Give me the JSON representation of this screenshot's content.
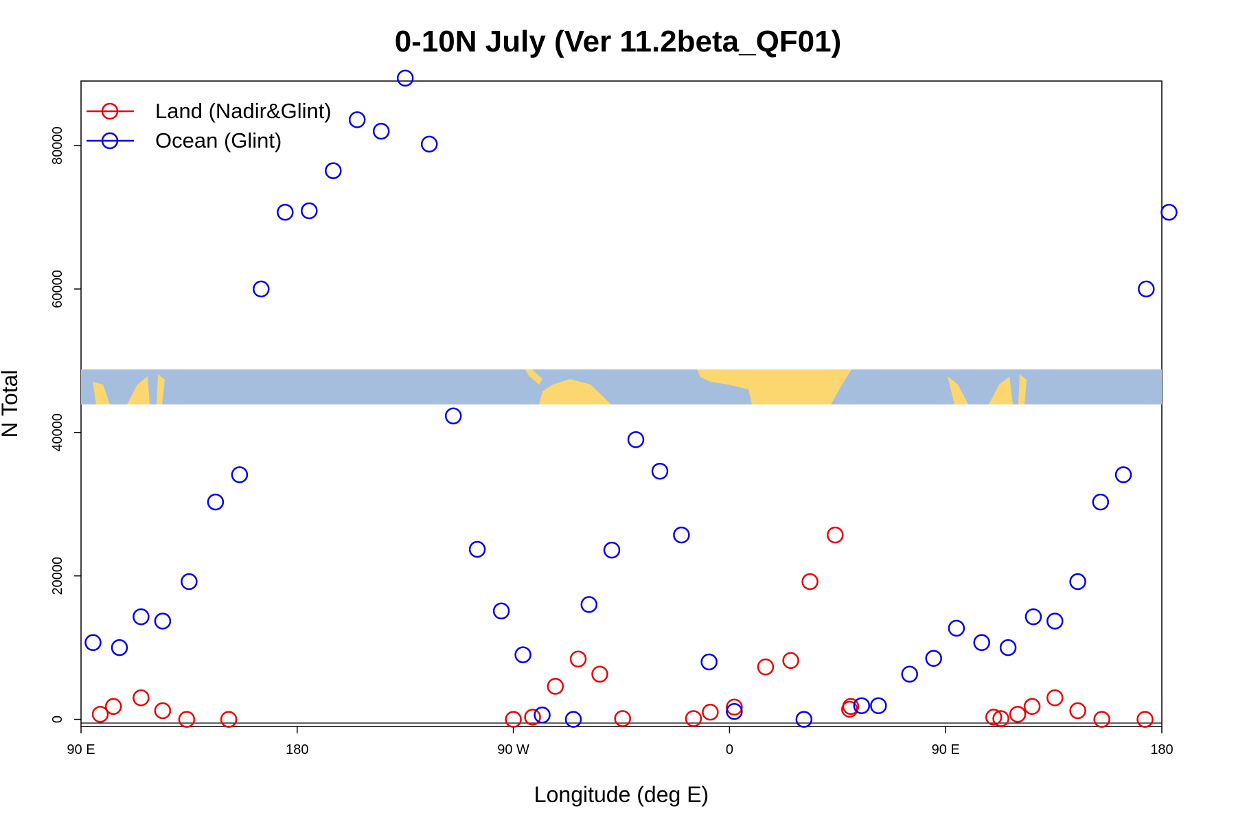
{
  "chart_data": {
    "type": "scatter",
    "title": "0-10N July (Ver 11.2beta_QF01)",
    "xlabel": "Longitude (deg E)",
    "ylabel": "N Total",
    "xlim": [
      90,
      540
    ],
    "ylim": [
      -1000,
      89000
    ],
    "x_ticks": [
      {
        "value": 90,
        "label": "90 E"
      },
      {
        "value": 180,
        "label": "180"
      },
      {
        "value": 270,
        "label": "90 W"
      },
      {
        "value": 360,
        "label": "0"
      },
      {
        "value": 450,
        "label": "90 E"
      },
      {
        "value": 540,
        "label": "180"
      }
    ],
    "y_ticks": [
      {
        "value": 0,
        "label": "0"
      },
      {
        "value": 20000,
        "label": "20000"
      },
      {
        "value": 40000,
        "label": "40000"
      },
      {
        "value": 60000,
        "label": "60000"
      },
      {
        "value": 80000,
        "label": "80000"
      }
    ],
    "legend": {
      "position": "top-left",
      "entries": [
        {
          "label": "Land (Nadir&Glint)",
          "color": "#ee0000"
        },
        {
          "label": "Ocean (Glint)",
          "color": "#0000ee"
        }
      ]
    },
    "series": [
      {
        "name": "Land (Nadir&Glint)",
        "color": "#ee0000",
        "x": [
          98,
          103.5,
          115,
          124,
          134,
          151.5,
          270,
          278,
          287.5,
          297,
          306,
          315.5,
          345,
          352,
          362,
          375,
          385.5,
          393.5,
          404,
          410,
          410.5,
          470,
          473,
          480,
          486,
          495.5,
          505,
          515,
          533
        ],
        "y": [
          700,
          1800,
          3000,
          1200,
          0,
          0,
          0,
          300,
          4600,
          8400,
          6300,
          100,
          100,
          1000,
          1700,
          7300,
          8200,
          19200,
          25700,
          1400,
          1800,
          300,
          100,
          700,
          1800,
          3000,
          1200,
          0,
          0
        ]
      },
      {
        "name": "Ocean (Glint)",
        "color": "#0000ee",
        "x": [
          95,
          106,
          115,
          124,
          135,
          146,
          156,
          165,
          175,
          185,
          195,
          205,
          215,
          225,
          235,
          245,
          255,
          265,
          274,
          282,
          295,
          301.5,
          311,
          321,
          331,
          340,
          351.5,
          362,
          391,
          415,
          422,
          435,
          445,
          454.5,
          465,
          476,
          486.5,
          495.5,
          505,
          514.5,
          524,
          533.5,
          543
        ],
        "y": [
          10700,
          10000,
          14300,
          13700,
          19200,
          30300,
          34100,
          60000,
          70700,
          70900,
          76500,
          83600,
          82000,
          89400,
          80200,
          42300,
          23700,
          15100,
          9000,
          600,
          0,
          16000,
          23600,
          39000,
          34600,
          25700,
          8000,
          1100,
          0,
          1900,
          1900,
          6300,
          8500,
          12700,
          10700,
          10000,
          14300,
          13700,
          19200,
          30300,
          34100,
          60000,
          70700
        ]
      }
    ]
  }
}
